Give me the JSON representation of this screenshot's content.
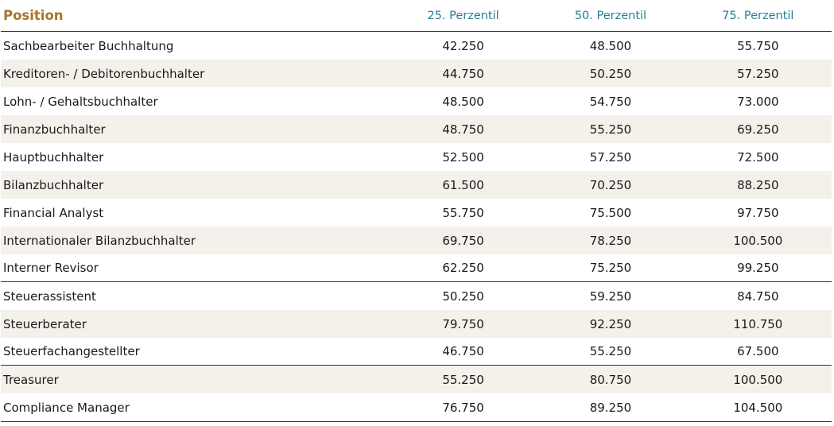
{
  "table": {
    "headers": {
      "position": "Position",
      "p25": "25. Perzentil",
      "p50": "50. Perzentil",
      "p75": "75. Perzentil"
    },
    "rows": [
      {
        "position": "Sachbearbeiter Buchhaltung",
        "p25": "42.250",
        "p50": "48.500",
        "p75": "55.750"
      },
      {
        "position": "Kreditoren- / Debitorenbuchhalter",
        "p25": "44.750",
        "p50": "50.250",
        "p75": "57.250"
      },
      {
        "position": "Lohn- / Gehaltsbuchhalter",
        "p25": "48.500",
        "p50": "54.750",
        "p75": "73.000"
      },
      {
        "position": "Finanzbuchhalter",
        "p25": "48.750",
        "p50": "55.250",
        "p75": "69.250"
      },
      {
        "position": "Hauptbuchhalter",
        "p25": "52.500",
        "p50": "57.250",
        "p75": "72.500"
      },
      {
        "position": "Bilanzbuchhalter",
        "p25": "61.500",
        "p50": "70.250",
        "p75": "88.250"
      },
      {
        "position": "Financial Analyst",
        "p25": "55.750",
        "p50": "75.500",
        "p75": "97.750"
      },
      {
        "position": "Internationaler Bilanzbuchhalter",
        "p25": "69.750",
        "p50": "78.250",
        "p75": "100.500"
      },
      {
        "position": "Interner Revisor",
        "p25": "62.250",
        "p50": "75.250",
        "p75": "99.250"
      },
      {
        "position": "Steuerassistent",
        "p25": "50.250",
        "p50": "59.250",
        "p75": "84.750"
      },
      {
        "position": "Steuerberater",
        "p25": "79.750",
        "p50": "92.250",
        "p75": "110.750"
      },
      {
        "position": "Steuerfachangestellter",
        "p25": "46.750",
        "p50": "55.250",
        "p75": "67.500"
      },
      {
        "position": "Treasurer",
        "p25": "55.250",
        "p50": "80.750",
        "p75": "100.500"
      },
      {
        "position": "Compliance Manager",
        "p25": "76.750",
        "p50": "89.250",
        "p75": "104.500"
      }
    ]
  },
  "colors": {
    "header_position": "#a87529",
    "header_percentile": "#2b7f92",
    "row_shade": "#f4f1ea",
    "rule": "#333333"
  }
}
